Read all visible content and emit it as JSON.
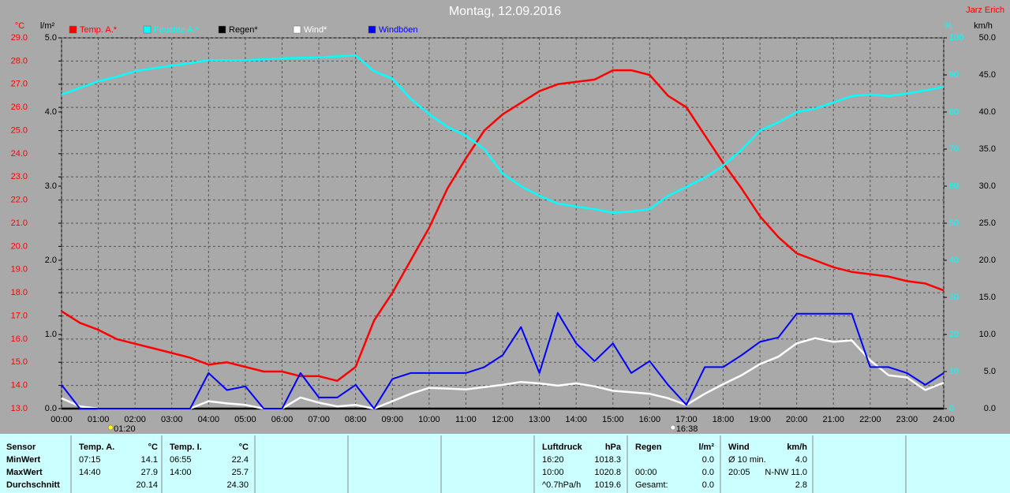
{
  "chart_data": {
    "type": "line",
    "title": "Montag, 12.09.2016",
    "author": "Jarz Erich",
    "grid": true,
    "xlim": [
      0,
      24
    ],
    "xticks": [
      {
        "value": 0,
        "label": "00:00"
      },
      {
        "value": 1,
        "label": "01:00"
      },
      {
        "value": 2,
        "label": "02:00"
      },
      {
        "value": 3,
        "label": "03:00"
      },
      {
        "value": 4,
        "label": "04:00"
      },
      {
        "value": 5,
        "label": "05:00"
      },
      {
        "value": 6,
        "label": "06:00"
      },
      {
        "value": 7,
        "label": "07:00"
      },
      {
        "value": 8,
        "label": "08:00"
      },
      {
        "value": 9,
        "label": "09:00"
      },
      {
        "value": 10,
        "label": "10:00"
      },
      {
        "value": 11,
        "label": "11:00"
      },
      {
        "value": 12,
        "label": "12:00"
      },
      {
        "value": 13,
        "label": "13:00"
      },
      {
        "value": 14,
        "label": "14:00"
      },
      {
        "value": 15,
        "label": "15:00"
      },
      {
        "value": 16,
        "label": "16:00"
      },
      {
        "value": 17,
        "label": "17:00"
      },
      {
        "value": 18,
        "label": "18:00"
      },
      {
        "value": 19,
        "label": "19:00"
      },
      {
        "value": 20,
        "label": "20:00"
      },
      {
        "value": 21,
        "label": "21:00"
      },
      {
        "value": 22,
        "label": "22:00"
      },
      {
        "value": 23,
        "label": "23:00"
      },
      {
        "value": 24,
        "label": "24:00"
      }
    ],
    "axes": [
      {
        "title": "°C",
        "color": "#ff0000",
        "side": "left",
        "lim": [
          13,
          29
        ],
        "ticks": [
          {
            "value": 13,
            "label": "13.0"
          },
          {
            "value": 14,
            "label": "14.0"
          },
          {
            "value": 15,
            "label": "15.0"
          },
          {
            "value": 16,
            "label": "16.0"
          },
          {
            "value": 17,
            "label": "17.0"
          },
          {
            "value": 18,
            "label": "18.0"
          },
          {
            "value": 19,
            "label": "19.0"
          },
          {
            "value": 20,
            "label": "20.0"
          },
          {
            "value": 21,
            "label": "21.0"
          },
          {
            "value": 22,
            "label": "22.0"
          },
          {
            "value": 23,
            "label": "23.0"
          },
          {
            "value": 24,
            "label": "24.0"
          },
          {
            "value": 25,
            "label": "25.0"
          },
          {
            "value": 26,
            "label": "26.0"
          },
          {
            "value": 27,
            "label": "27.0"
          },
          {
            "value": 28,
            "label": "28.0"
          },
          {
            "value": 29,
            "label": "29.0"
          }
        ]
      },
      {
        "title": "l/m²",
        "color": "#000000",
        "side": "left",
        "lim": [
          0,
          5
        ],
        "ticks": [
          {
            "value": 0,
            "label": "0.0"
          },
          {
            "value": 1,
            "label": "1.0"
          },
          {
            "value": 2,
            "label": "2.0"
          },
          {
            "value": 3,
            "label": "3.0"
          },
          {
            "value": 4,
            "label": "4.0"
          },
          {
            "value": 5,
            "label": "5.0"
          }
        ]
      },
      {
        "title": "%",
        "color": "#00ffff",
        "side": "right",
        "lim": [
          0,
          100
        ],
        "ticks": [
          0,
          10,
          20,
          30,
          40,
          50,
          60,
          70,
          80,
          90,
          100
        ]
      },
      {
        "title": "km/h",
        "color": "#000000",
        "side": "right",
        "lim": [
          0,
          50
        ],
        "ticks": [
          {
            "value": 0,
            "label": "0.0"
          },
          {
            "value": 5,
            "label": "5.0"
          },
          {
            "value": 10,
            "label": "10.0"
          },
          {
            "value": 15,
            "label": "15.0"
          },
          {
            "value": 20,
            "label": "20.0"
          },
          {
            "value": 25,
            "label": "25.0"
          },
          {
            "value": 30,
            "label": "30.0"
          },
          {
            "value": 35,
            "label": "35.0"
          },
          {
            "value": 40,
            "label": "40.0"
          },
          {
            "value": 45,
            "label": "45.0"
          },
          {
            "value": 50,
            "label": "50.0"
          }
        ]
      }
    ],
    "x": [
      0,
      0.5,
      1,
      1.5,
      2,
      2.5,
      3,
      3.5,
      4,
      4.5,
      5,
      5.5,
      6,
      6.5,
      7,
      7.5,
      8,
      8.5,
      9,
      9.5,
      10,
      10.5,
      11,
      11.5,
      12,
      12.5,
      13,
      13.5,
      14,
      14.5,
      15,
      15.5,
      16,
      16.5,
      17,
      17.5,
      18,
      18.5,
      19,
      19.5,
      20,
      20.5,
      21,
      21.5,
      22,
      22.5,
      23,
      23.5,
      24
    ],
    "series": [
      {
        "name": "Temp. A.*",
        "color": "#ff0000",
        "axis": 0,
        "values": [
          17.2,
          16.7,
          16.4,
          16.0,
          15.8,
          15.6,
          15.4,
          15.2,
          14.9,
          15.0,
          14.8,
          14.6,
          14.6,
          14.4,
          14.4,
          14.2,
          14.8,
          16.8,
          18.0,
          19.4,
          20.8,
          22.5,
          23.8,
          25.0,
          25.7,
          26.2,
          26.7,
          27.0,
          27.1,
          27.2,
          27.6,
          27.6,
          27.4,
          26.5,
          26.0,
          24.8,
          23.6,
          22.5,
          21.3,
          20.4,
          19.7,
          19.4,
          19.1,
          18.9,
          18.8,
          18.7,
          18.5,
          18.4,
          18.1
        ]
      },
      {
        "name": "Feuchte A.*",
        "color": "#00ffff",
        "axis": 2,
        "values": [
          84.7,
          86.5,
          88.3,
          89.5,
          91,
          91.8,
          92.5,
          93.2,
          94,
          94,
          94,
          94.2,
          94.5,
          94.6,
          94.7,
          95,
          95.3,
          91,
          89,
          83.6,
          79.4,
          76,
          73.6,
          70,
          63.4,
          60,
          57.4,
          55.3,
          54.5,
          53.8,
          52.8,
          53.2,
          53.8,
          57.4,
          59.8,
          62.3,
          65.5,
          69.8,
          75,
          77.2,
          80,
          80.9,
          82.6,
          84.3,
          84.7,
          84.3,
          85,
          85.8,
          86.8
        ]
      },
      {
        "name": "Regen*",
        "color": "#000000",
        "axis": 1,
        "values": [
          0,
          0,
          0,
          0,
          0,
          0,
          0,
          0,
          0,
          0,
          0,
          0,
          0,
          0,
          0,
          0,
          0,
          0,
          0,
          0,
          0,
          0,
          0,
          0,
          0,
          0,
          0,
          0,
          0,
          0,
          0,
          0,
          0,
          0,
          0,
          0,
          0,
          0,
          0,
          0,
          0,
          0,
          0,
          0,
          0,
          0,
          0,
          0,
          0
        ]
      },
      {
        "name": "Wind*",
        "color": "#ffffff",
        "axis": 3,
        "values": [
          1.4,
          0.3,
          0,
          0,
          0,
          0,
          0,
          0,
          1.0,
          0.7,
          0.5,
          0,
          0,
          1.5,
          0.8,
          0.3,
          0.5,
          0,
          1.0,
          2.0,
          2.8,
          2.7,
          2.6,
          2.9,
          3.2,
          3.6,
          3.4,
          3.1,
          3.4,
          3.0,
          2.4,
          2.2,
          2.0,
          1.4,
          0.5,
          2.0,
          3.3,
          4.5,
          6.0,
          7.0,
          8.8,
          9.5,
          9.0,
          9.2,
          6.5,
          4.5,
          4.2,
          2.5,
          3.5
        ]
      },
      {
        "name": "Windböen",
        "color": "#0000ff",
        "axis": 3,
        "values": [
          3.2,
          0,
          0,
          0,
          0,
          0,
          0,
          0,
          4.8,
          2.5,
          3.0,
          0,
          0,
          4.8,
          1.5,
          1.5,
          3.2,
          0,
          4.0,
          4.8,
          4.8,
          4.8,
          4.8,
          5.6,
          7.2,
          11.0,
          4.8,
          12.9,
          8.8,
          6.4,
          8.8,
          4.8,
          6.4,
          3.2,
          0.5,
          5.6,
          5.6,
          7.2,
          9.0,
          9.6,
          12.8,
          12.8,
          12.8,
          12.8,
          5.6,
          5.6,
          4.8,
          3.2,
          4.8
        ]
      }
    ],
    "markers": [
      {
        "time": {
          "value": 1.333,
          "label": "01:20"
        },
        "color": "#ffff00"
      },
      {
        "time": {
          "value": 16.633,
          "label": "16:38"
        },
        "color": "#ffffff"
      }
    ]
  },
  "table": {
    "blocks": [
      {
        "header": [
          "Sensor"
        ],
        "rows": [
          [
            "MinWert"
          ],
          [
            "MaxWert"
          ],
          [
            "Durchschnitt"
          ]
        ]
      },
      {
        "header": [
          "Temp. A.",
          "°C"
        ],
        "rows": [
          [
            "07:15",
            "14.1"
          ],
          [
            "14:40",
            "27.9"
          ],
          [
            null,
            "20.14"
          ]
        ]
      },
      {
        "header": [
          "Temp. I.",
          "°C"
        ],
        "rows": [
          [
            "06:55",
            "22.4"
          ],
          [
            "14:00",
            "25.7"
          ],
          [
            null,
            "24.30"
          ]
        ]
      },
      {
        "header": [
          "Luftdruck",
          "hPa"
        ],
        "rows": [
          [
            "16:20",
            "1018.3"
          ],
          [
            "10:00",
            "1020.8"
          ],
          [
            "^0.7hPa/h",
            "1019.6"
          ]
        ]
      },
      {
        "header": [
          "Regen",
          "l/m²"
        ],
        "rows": [
          [
            null,
            "0.0"
          ],
          [
            "00:00",
            "0.0"
          ],
          [
            "Gesamt:",
            "0.0"
          ]
        ]
      },
      {
        "header": [
          "Wind",
          "km/h"
        ],
        "rows": [
          [
            "Ø 10 min.",
            "4.0"
          ],
          [
            "20:05",
            "N-NW 11.0"
          ],
          [
            null,
            "2.8"
          ]
        ]
      }
    ]
  }
}
